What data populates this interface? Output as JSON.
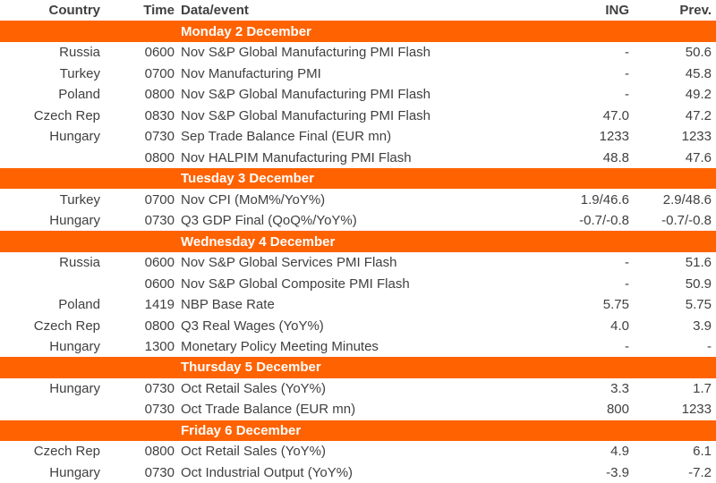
{
  "colors": {
    "accent": "#FF6200",
    "text": "#404040",
    "section_text": "#FFFFFF",
    "background": "#FFFFFF"
  },
  "columns": {
    "country": "Country",
    "time": "Time",
    "event": "Data/event",
    "ing": "ING",
    "prev": "Prev."
  },
  "sections": [
    {
      "day": "Monday 2 December",
      "rows": [
        {
          "country": "Russia",
          "time": "0600",
          "event": "Nov S&P Global Manufacturing PMI Flash",
          "ing": "-",
          "prev": "50.6"
        },
        {
          "country": "Turkey",
          "time": "0700",
          "event": "Nov Manufacturing PMI",
          "ing": "-",
          "prev": "45.8"
        },
        {
          "country": "Poland",
          "time": "0800",
          "event": "Nov S&P Global Manufacturing PMI Flash",
          "ing": "-",
          "prev": "49.2"
        },
        {
          "country": "Czech Rep",
          "time": "0830",
          "event": "Nov S&P Global Manufacturing PMI Flash",
          "ing": "47.0",
          "prev": "47.2"
        },
        {
          "country": "Hungary",
          "time": "0730",
          "event": "Sep Trade Balance Final (EUR mn)",
          "ing": "1233",
          "prev": "1233"
        },
        {
          "country": "",
          "time": "0800",
          "event": "Nov HALPIM Manufacturing PMI Flash",
          "ing": "48.8",
          "prev": "47.6"
        }
      ]
    },
    {
      "day": "Tuesday 3 December",
      "rows": [
        {
          "country": "Turkey",
          "time": "0700",
          "event": "Nov CPI (MoM%/YoY%)",
          "ing": "1.9/46.6",
          "prev": "2.9/48.6"
        },
        {
          "country": "Hungary",
          "time": "0730",
          "event": "Q3 GDP Final (QoQ%/YoY%)",
          "ing": "-0.7/-0.8",
          "prev": "-0.7/-0.8"
        }
      ]
    },
    {
      "day": "Wednesday 4 December",
      "rows": [
        {
          "country": "Russia",
          "time": "0600",
          "event": "Nov S&P Global Services PMI Flash",
          "ing": "-",
          "prev": "51.6"
        },
        {
          "country": "",
          "time": "0600",
          "event": "Nov S&P Global Composite PMI Flash",
          "ing": "-",
          "prev": "50.9"
        },
        {
          "country": "Poland",
          "time": "1419",
          "event": "NBP Base Rate",
          "ing": "5.75",
          "prev": "5.75"
        },
        {
          "country": "Czech Rep",
          "time": "0800",
          "event": "Q3 Real Wages (YoY%)",
          "ing": "4.0",
          "prev": "3.9"
        },
        {
          "country": "Hungary",
          "time": "1300",
          "event": "Monetary Policy Meeting Minutes",
          "ing": "-",
          "prev": "-"
        }
      ]
    },
    {
      "day": "Thursday 5 December",
      "rows": [
        {
          "country": "Hungary",
          "time": "0730",
          "event": "Oct Retail Sales (YoY%)",
          "ing": "3.3",
          "prev": "1.7"
        },
        {
          "country": "",
          "time": "0730",
          "event": "Oct Trade Balance (EUR mn)",
          "ing": "800",
          "prev": "1233"
        }
      ]
    },
    {
      "day": "Friday 6 December",
      "rows": [
        {
          "country": "Czech Rep",
          "time": "0800",
          "event": "Oct Retail Sales (YoY%)",
          "ing": "4.9",
          "prev": "6.1"
        },
        {
          "country": "Hungary",
          "time": "0730",
          "event": "Oct Industrial Output (YoY%)",
          "ing": "-3.9",
          "prev": "-7.2"
        }
      ]
    }
  ]
}
